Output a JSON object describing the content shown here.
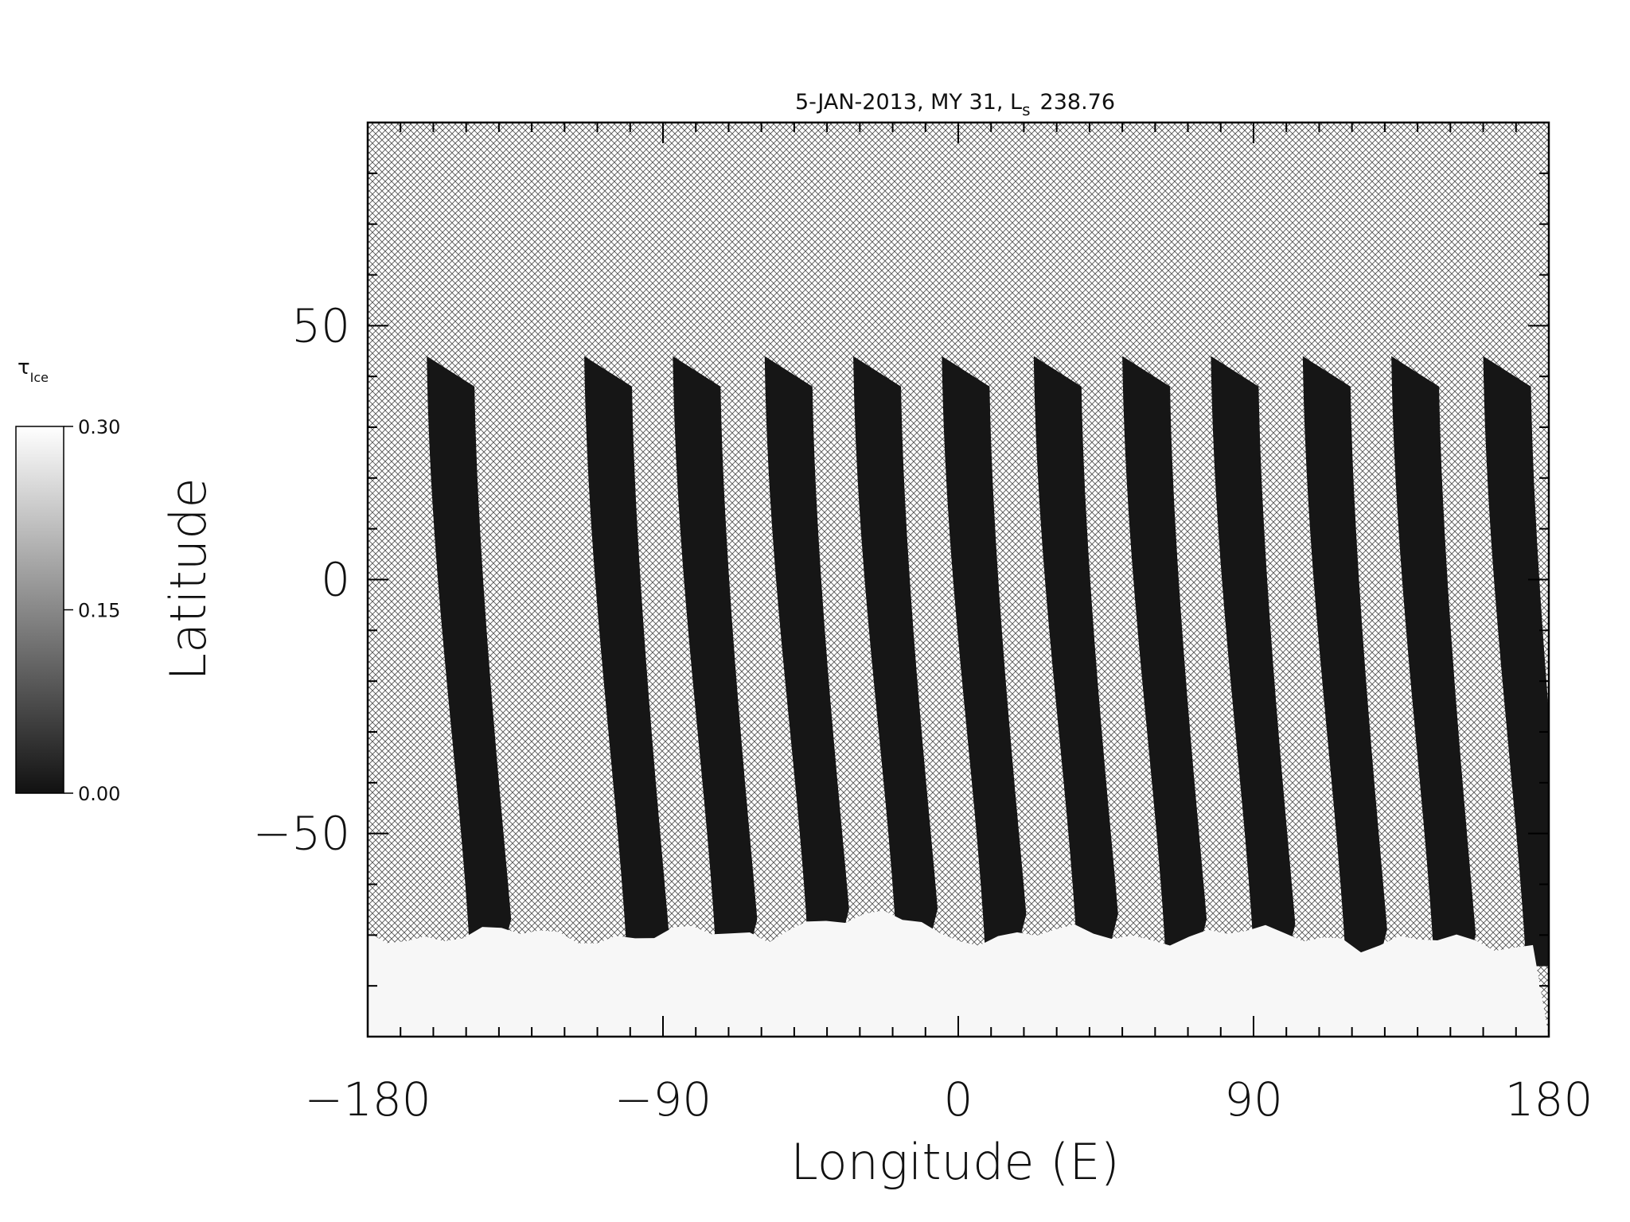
{
  "chart_data": {
    "type": "heatmap",
    "title": "5-JAN-2013, MY 31,  L",
    "title_subscript": "s",
    "title_value": "238.76",
    "xlabel": "Longitude (E)",
    "ylabel": "Latitude",
    "xlim": [
      -180,
      180
    ],
    "ylim": [
      -90,
      90
    ],
    "xticks": [
      -180,
      -90,
      0,
      90,
      180
    ],
    "xtick_labels": [
      "−180",
      "−90",
      "0",
      "90",
      "180"
    ],
    "yticks": [
      -50,
      0,
      50
    ],
    "ytick_labels": [
      "−50",
      "0",
      "50"
    ],
    "colorbar": {
      "label": "τ",
      "label_subscript": "Ice",
      "range": [
        0.0,
        0.3
      ],
      "ticks": [
        0.0,
        0.15,
        0.3
      ],
      "tick_labels": [
        "0.00",
        "0.15",
        "0.30"
      ],
      "colormap": "grayscale"
    },
    "no_data_fill": "crosshatch",
    "swaths": [
      {
        "start_lon": -162,
        "north_lat": 44,
        "south_lat": -70
      },
      {
        "start_lon": -114,
        "north_lat": 44,
        "south_lat": -72
      },
      {
        "start_lon": -87,
        "north_lat": 44,
        "south_lat": -70
      },
      {
        "start_lon": -59,
        "north_lat": 44,
        "south_lat": -68
      },
      {
        "start_lon": -32,
        "north_lat": 44,
        "south_lat": -68
      },
      {
        "start_lon": -5,
        "north_lat": 44,
        "south_lat": -69
      },
      {
        "start_lon": 23,
        "north_lat": 44,
        "south_lat": -69
      },
      {
        "start_lon": 50,
        "north_lat": 44,
        "south_lat": -70
      },
      {
        "start_lon": 77,
        "north_lat": 44,
        "south_lat": -71
      },
      {
        "start_lon": 105,
        "north_lat": 44,
        "south_lat": -72
      },
      {
        "start_lon": 132,
        "north_lat": 44,
        "south_lat": -73
      },
      {
        "start_lon": 160,
        "north_lat": 44,
        "south_lat": -73
      }
    ],
    "polar_cap_edge_lat": -70
  }
}
